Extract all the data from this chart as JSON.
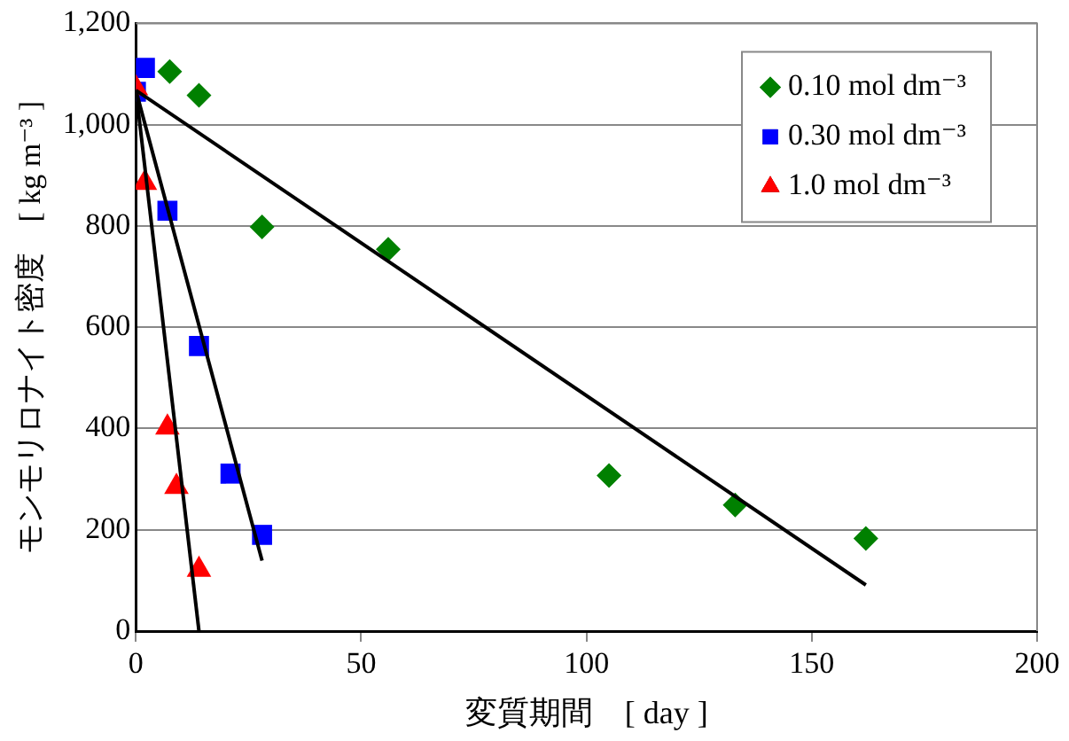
{
  "chart_data": {
    "type": "scatter",
    "xlabel": "変質期間　[ day ]",
    "ylabel": "モンモリロナイト密度　[ kg m⁻³ ]",
    "xlim": [
      0,
      200
    ],
    "xticks": [
      0,
      50,
      100,
      150,
      200
    ],
    "ylim": [
      0,
      1200
    ],
    "yticks": [
      0,
      200,
      400,
      600,
      800,
      {
        "value": 1000,
        "label": "1,000"
      },
      {
        "value": 1200,
        "label": "1,200"
      }
    ],
    "grid": "y",
    "legend": "top right",
    "series": [
      {
        "name": "0.10 mol dm⁻³",
        "color": "#008000",
        "marker": "diamond",
        "x": [
          7.5,
          14,
          28,
          56,
          105,
          133,
          162
        ],
        "values": [
          1105,
          1058,
          798,
          754,
          307,
          249,
          183
        ]
      },
      {
        "name": "0.30 mol dm⁻³",
        "color": "#0000ff",
        "marker": "square",
        "x": [
          0,
          2,
          7,
          14,
          21,
          28
        ],
        "values": [
          1065,
          1112,
          830,
          563,
          311,
          190
        ]
      },
      {
        "name": "1.0 mol dm⁻³",
        "color": "#ff0000",
        "marker": "triangle",
        "x": [
          0,
          2,
          7,
          9,
          14
        ],
        "values": [
          1072,
          885,
          402,
          285,
          121
        ]
      },
      {
        "type": "line",
        "color": "#000000",
        "marker": "none",
        "x": [
          0,
          162
        ],
        "values": [
          1068,
          91
        ]
      },
      {
        "type": "line",
        "color": "#000000",
        "marker": "none",
        "x": [
          0,
          28
        ],
        "values": [
          1068,
          139
        ]
      },
      {
        "type": "line",
        "color": "#000000",
        "marker": "none",
        "x": [
          0,
          14
        ],
        "values": [
          1068,
          0
        ]
      }
    ]
  }
}
